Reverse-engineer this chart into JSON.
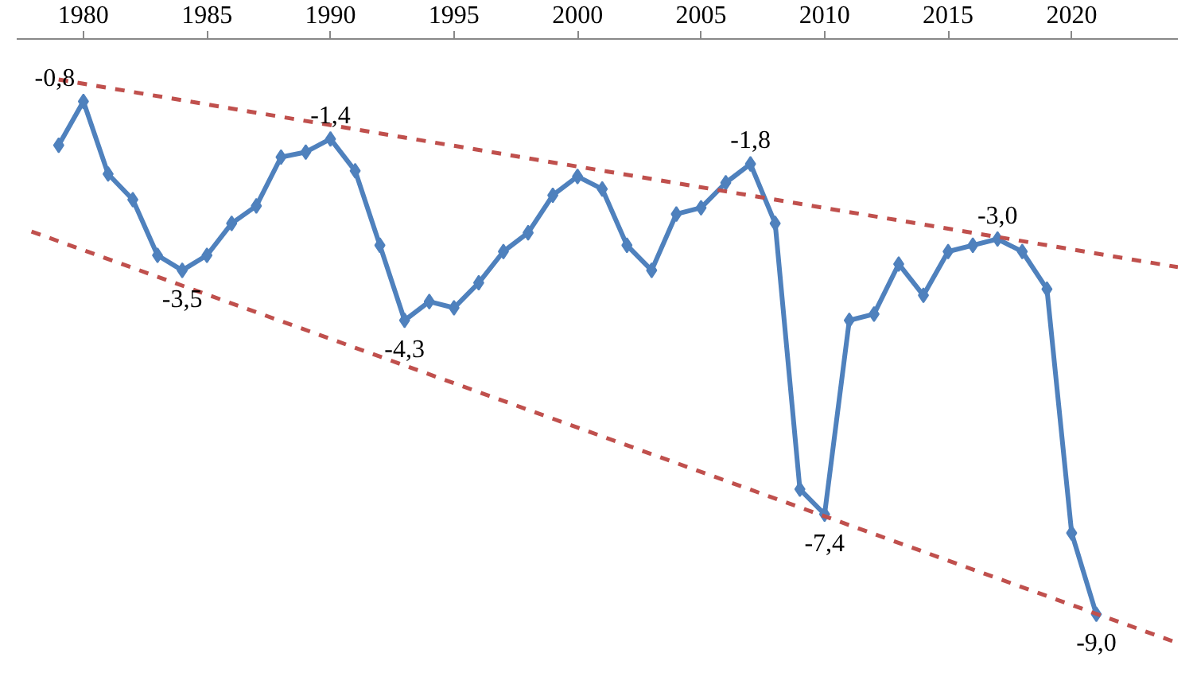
{
  "chart_data": {
    "type": "line",
    "x": [
      1979,
      1980,
      1981,
      1982,
      1983,
      1984,
      1985,
      1986,
      1987,
      1988,
      1989,
      1990,
      1991,
      1992,
      1993,
      1994,
      1995,
      1996,
      1997,
      1998,
      1999,
      2000,
      2001,
      2002,
      2003,
      2004,
      2005,
      2006,
      2007,
      2008,
      2009,
      2010,
      2011,
      2012,
      2013,
      2014,
      2015,
      2016,
      2017,
      2018,
      2019,
      2020,
      2021
    ],
    "xlim": [
      1977.3,
      2024.3
    ],
    "xticks": [
      1980,
      1985,
      1990,
      1995,
      2000,
      2005,
      2010,
      2015,
      2020
    ],
    "tick_labels": "x",
    "grid": false,
    "series": [
      {
        "color": "#4f81bd",
        "marker": "diamond",
        "line_style": "solid",
        "values": [
          -1.5,
          -0.8,
          -1.96,
          -2.37,
          -3.26,
          -3.5,
          -3.26,
          -2.75,
          -2.47,
          -1.69,
          -1.61,
          -1.4,
          -1.91,
          -3.1,
          -4.3,
          -4.0,
          -4.1,
          -3.7,
          -3.2,
          -2.9,
          -2.3,
          -2.0,
          -2.2,
          -3.1,
          -3.5,
          -2.6,
          -2.5,
          -2.1,
          -1.8,
          -2.75,
          -7.0,
          -7.4,
          -4.3,
          -4.2,
          -3.4,
          -3.9,
          -3.2,
          -3.1,
          -3.0,
          -3.2,
          -3.8,
          -7.7,
          -9.0
        ],
        "value_labels": [
          null,
          "-0,8",
          null,
          null,
          null,
          "-3,5",
          null,
          null,
          null,
          null,
          null,
          "-1,4",
          null,
          null,
          "-4,3",
          null,
          null,
          null,
          null,
          null,
          null,
          null,
          null,
          null,
          null,
          null,
          null,
          null,
          "-1,8",
          null,
          null,
          "-7,4",
          null,
          null,
          null,
          null,
          null,
          null,
          "-3,0",
          null,
          null,
          null,
          "-9,0"
        ]
      },
      {
        "color": "#c0504d",
        "marker": "none",
        "line_style": "dashed",
        "x": [
          1979,
          2024.3
        ],
        "values": [
          -0.45,
          -3.45
        ]
      },
      {
        "color": "#c0504d",
        "marker": "none",
        "line_style": "dashed",
        "x": [
          1977.9,
          2024.3
        ],
        "values": [
          -2.88,
          -9.46
        ]
      }
    ]
  }
}
